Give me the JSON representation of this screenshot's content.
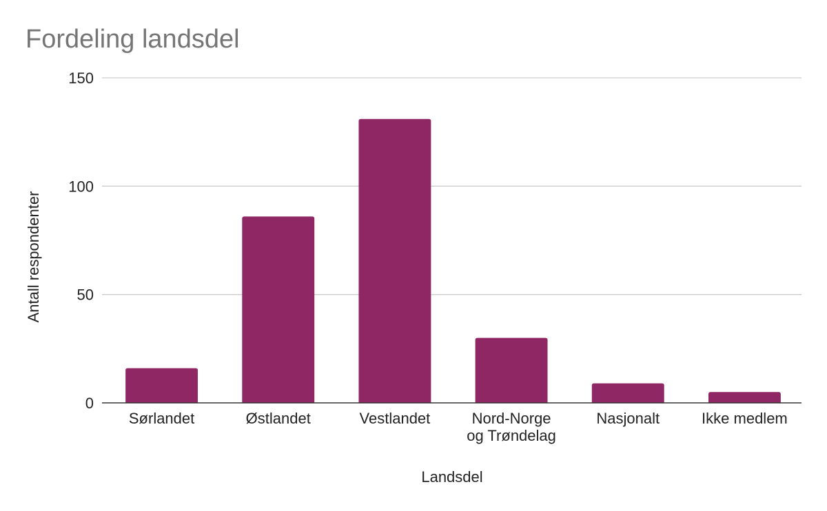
{
  "chart_data": {
    "type": "bar",
    "title": "Fordeling landsdel",
    "xlabel": "Landsdel",
    "ylabel": "Antall respondenter",
    "categories": [
      [
        "Sørlandet"
      ],
      [
        "Østlandet"
      ],
      [
        "Vestlandet"
      ],
      [
        "Nord-Norge",
        "og Trøndelag"
      ],
      [
        "Nasjonalt"
      ],
      [
        "Ikke medlem"
      ]
    ],
    "values": [
      16,
      86,
      131,
      30,
      9,
      5
    ],
    "ylim": [
      0,
      150
    ],
    "yticks": [
      0,
      50,
      100,
      150
    ],
    "grid": true,
    "legend": "none",
    "colors": {
      "bar": "#8e2764",
      "title": "#757575"
    }
  }
}
